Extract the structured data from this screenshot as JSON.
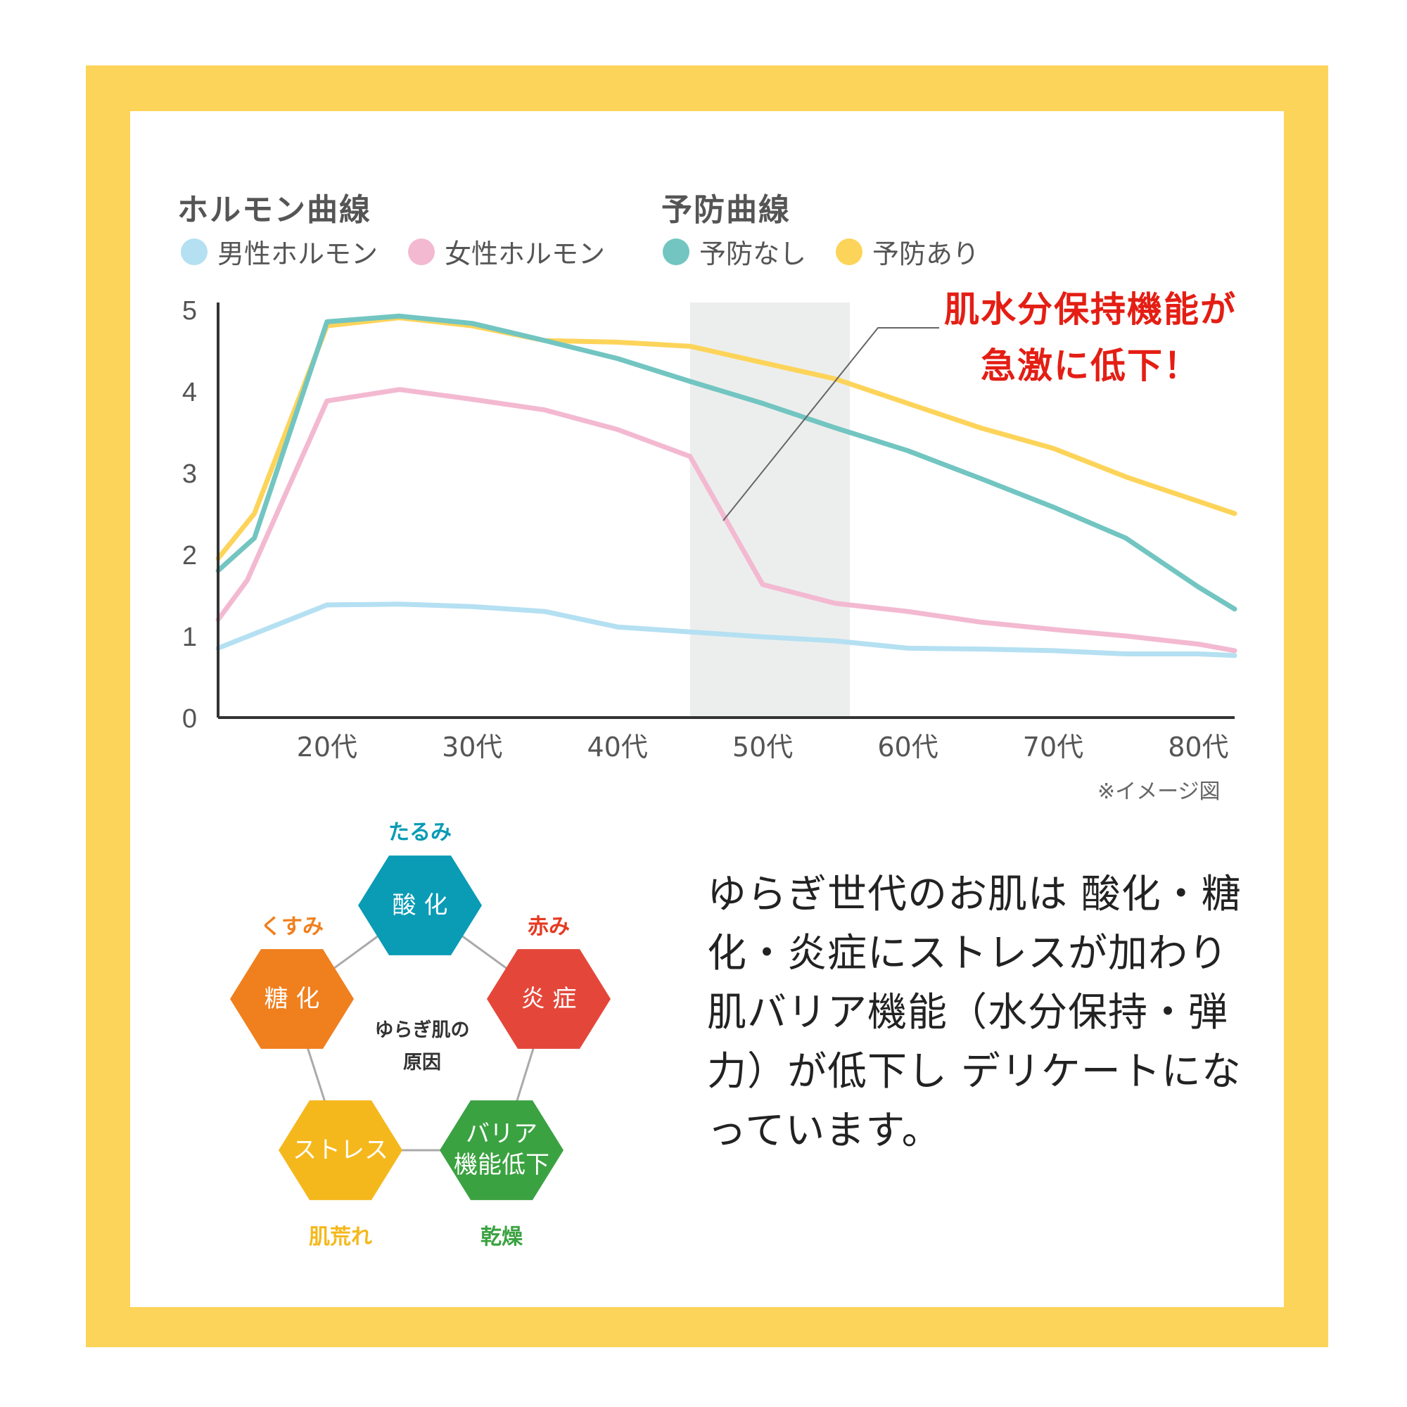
{
  "legend": {
    "group1_title": "ホルモン曲線",
    "group2_title": "予防曲線",
    "items": [
      {
        "label": "男性ホルモン",
        "color": "#b4e0f2"
      },
      {
        "label": "女性ホルモン",
        "color": "#f3b9d1"
      },
      {
        "label": "予防なし",
        "color": "#72c5c1"
      },
      {
        "label": "予防あり",
        "color": "#fdd45a"
      }
    ]
  },
  "callout": {
    "line1": "肌水分保持機能が",
    "line2": "急激に低下！",
    "color": "#e41e14"
  },
  "note": "※イメージ図",
  "chart_data": {
    "type": "line",
    "xlabel": "",
    "ylabel": "",
    "ylim": [
      0,
      5
    ],
    "xlim": [
      12.5,
      82.5
    ],
    "yticks": [
      "0",
      "1",
      "2",
      "3",
      "4",
      "5"
    ],
    "xticks": [
      {
        "value": 20,
        "label": "20代"
      },
      {
        "value": 30,
        "label": "30代"
      },
      {
        "value": 40,
        "label": "40代"
      },
      {
        "value": 50,
        "label": "50代"
      },
      {
        "value": 60,
        "label": "60代"
      },
      {
        "value": 70,
        "label": "70代"
      },
      {
        "value": 80,
        "label": "80代"
      }
    ],
    "highlight_band": {
      "from": 45,
      "to": 56,
      "color": "#eceeed"
    },
    "grid": false,
    "series": [
      {
        "name": "予防あり",
        "color": "#fdd45a",
        "x": [
          12.5,
          15,
          20,
          25,
          30,
          35,
          40,
          45,
          50,
          55,
          60,
          65,
          70,
          75,
          80,
          82.5
        ],
        "y": [
          1.95,
          2.5,
          4.8,
          4.9,
          4.8,
          4.62,
          4.6,
          4.55,
          4.35,
          4.15,
          3.85,
          3.55,
          3.3,
          2.95,
          2.65,
          2.5
        ]
      },
      {
        "name": "予防なし",
        "color": "#72c5c1",
        "x": [
          12.5,
          15,
          20,
          25,
          30,
          35,
          40,
          45,
          50,
          55,
          60,
          65,
          70,
          75,
          80,
          82.5
        ],
        "y": [
          1.8,
          2.2,
          4.85,
          4.92,
          4.83,
          4.62,
          4.4,
          4.12,
          3.85,
          3.55,
          3.27,
          2.93,
          2.58,
          2.2,
          1.6,
          1.33
        ]
      },
      {
        "name": "女性ホルモン",
        "color": "#f3b9d1",
        "x": [
          12.5,
          14.5,
          20,
          25,
          30,
          35,
          40,
          45,
          50,
          55,
          60,
          65,
          70,
          75,
          80,
          82.5
        ],
        "y": [
          1.2,
          1.68,
          3.88,
          4.02,
          3.9,
          3.77,
          3.53,
          3.2,
          1.63,
          1.4,
          1.3,
          1.17,
          1.08,
          1.0,
          0.9,
          0.82
        ]
      },
      {
        "name": "男性ホルモン",
        "color": "#b4e0f2",
        "x": [
          12.5,
          20,
          25,
          30,
          35,
          40,
          45,
          50,
          55,
          60,
          65,
          70,
          75,
          80,
          82.5
        ],
        "y": [
          0.85,
          1.38,
          1.39,
          1.36,
          1.3,
          1.11,
          1.05,
          0.99,
          0.94,
          0.85,
          0.84,
          0.82,
          0.78,
          0.78,
          0.76
        ]
      }
    ]
  },
  "diagram": {
    "center_line1": "ゆらぎ肌の",
    "center_line2": "原因",
    "nodes": [
      {
        "label": "たるみ",
        "text": "酸 化",
        "color": "#0a9bb5",
        "label_color": "#0a9bb5"
      },
      {
        "label": "赤み",
        "text": "炎 症",
        "color": "#e4473a",
        "label_color": "#e63a22"
      },
      {
        "label": "乾燥",
        "text": "バリア 機能低下",
        "color": "#3ba241",
        "label_color": "#3ba241"
      },
      {
        "label": "肌荒れ",
        "text": "ストレス",
        "color": "#f5b81c",
        "label_color": "#f5b81c"
      },
      {
        "label": "くすみ",
        "text": "糖 化",
        "color": "#f07f1e",
        "label_color": "#f07f1e"
      }
    ]
  },
  "body_text": "ゆらぎ世代のお肌は 酸化・糖化・炎症にストレスが加わり肌バリア機能（水分保持・弾力）が低下し デリケートになっています。"
}
